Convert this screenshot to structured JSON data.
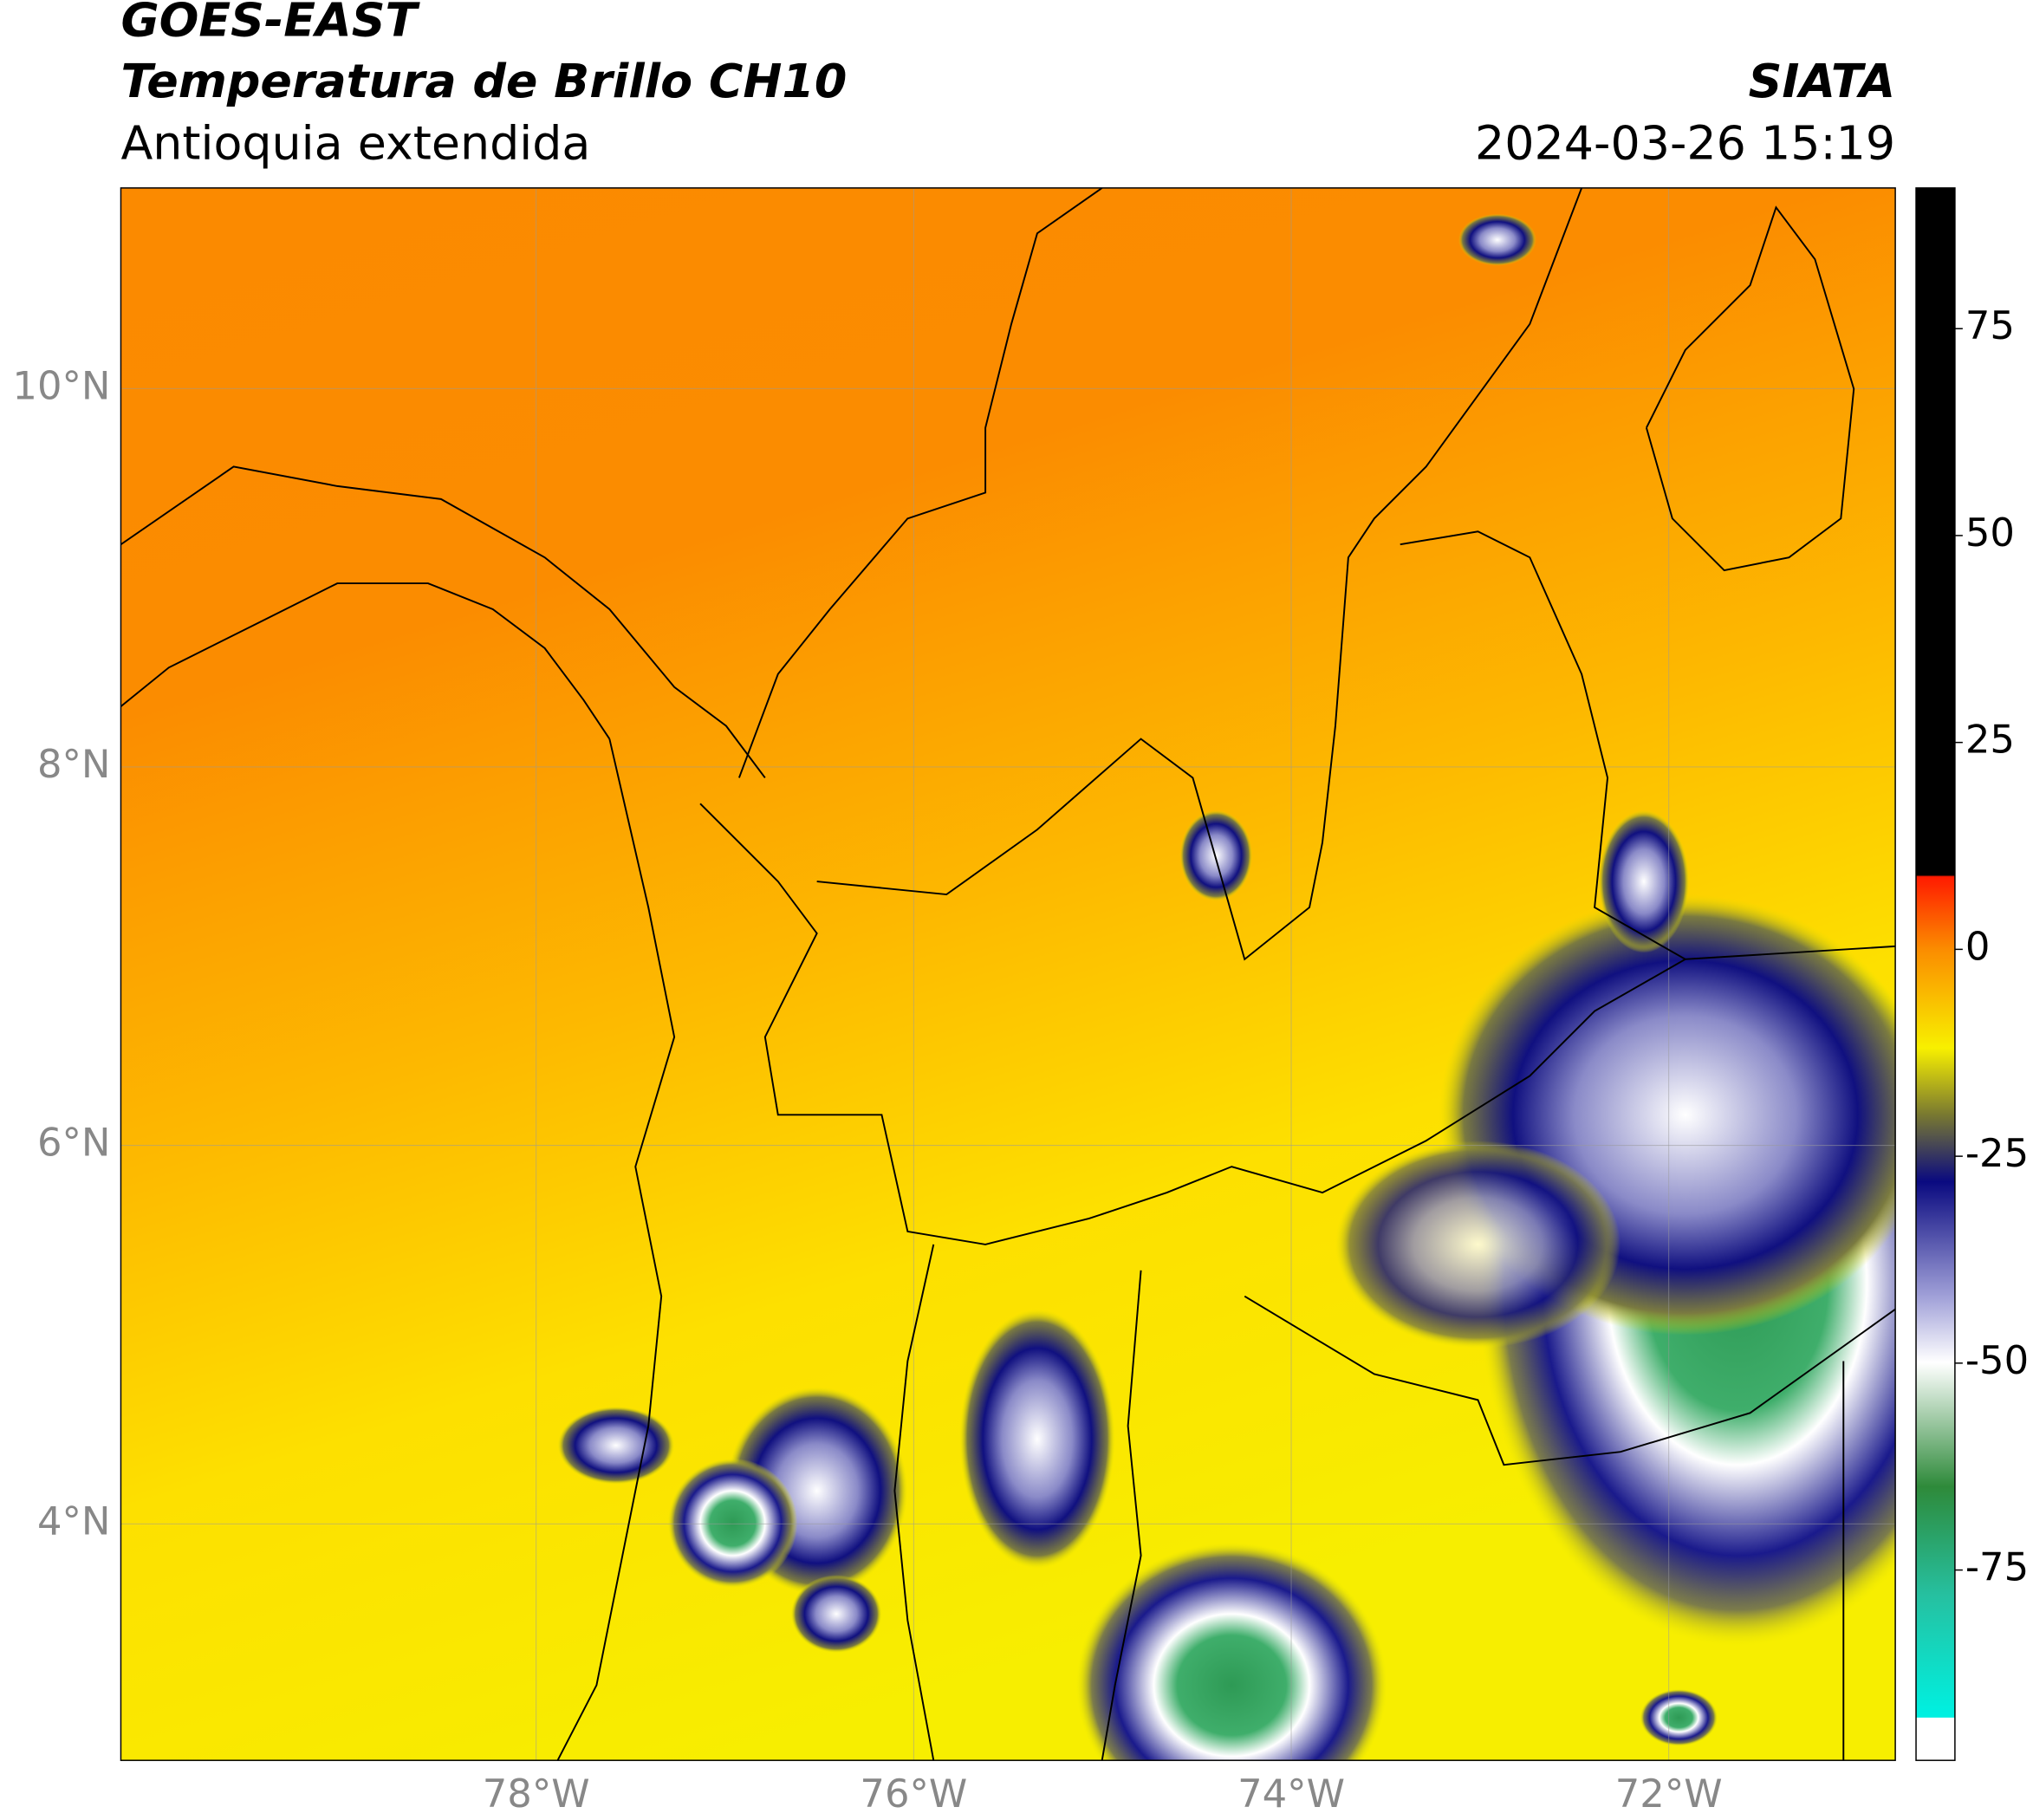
{
  "header": {
    "title": "GOES-EAST",
    "subtitle": "Temperatura de Brillo CH10",
    "region": "Antioquia extendida",
    "source": "SIATA",
    "datetime": "2024-03-26 15:19"
  },
  "map": {
    "lat_range": [
      2.75,
      11.06
    ],
    "lon_range": [
      -80.2,
      -70.8
    ],
    "lat_ticks": [
      {
        "value": 10,
        "label": "10°N"
      },
      {
        "value": 8,
        "label": "8°N"
      },
      {
        "value": 6,
        "label": "6°N"
      },
      {
        "value": 4,
        "label": "4°N"
      }
    ],
    "lon_ticks": [
      {
        "value": -78,
        "label": "78°W"
      },
      {
        "value": -76,
        "label": "76°W"
      },
      {
        "value": -74,
        "label": "74°W"
      },
      {
        "value": -72,
        "label": "72°W"
      }
    ]
  },
  "colorbar": {
    "range": [
      -98,
      92
    ],
    "ticks": [
      75,
      50,
      25,
      0,
      -25,
      -50,
      -75
    ]
  }
}
